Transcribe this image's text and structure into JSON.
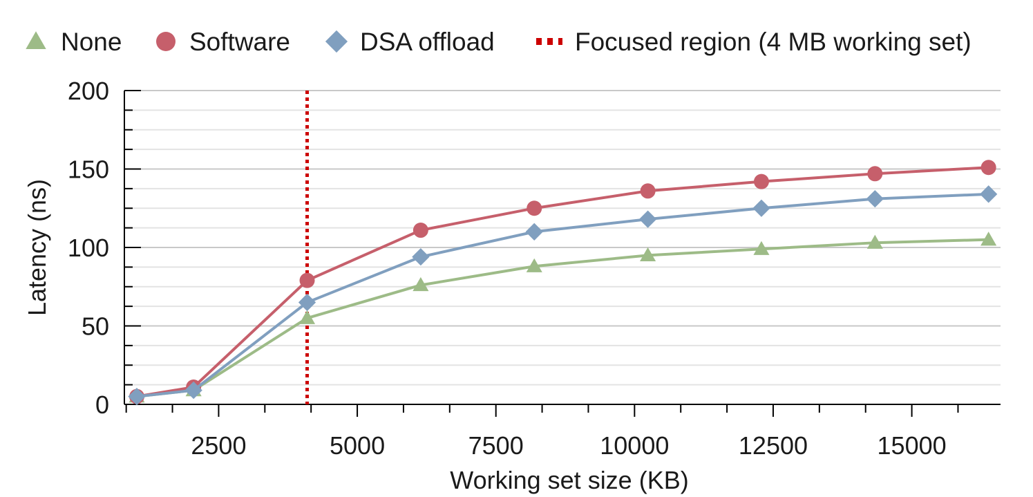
{
  "chart_data": {
    "type": "line",
    "title": "",
    "xlabel": "Working set size (KB)",
    "ylabel": "Latency (ns)",
    "xlim": [
      800,
      16600
    ],
    "ylim": [
      0,
      200
    ],
    "x_major_ticks": [
      2500,
      5000,
      7500,
      10000,
      12500,
      15000
    ],
    "y_major_ticks": [
      0,
      50,
      100,
      150,
      200
    ],
    "grid": true,
    "legend_position": "top",
    "x": [
      1024,
      2048,
      4096,
      6144,
      8192,
      10240,
      12288,
      14336,
      16384
    ],
    "series": [
      {
        "name": "None",
        "marker": "triangle",
        "color": "#9dbb87",
        "values": [
          5,
          9,
          55,
          76,
          88,
          95,
          99,
          103,
          105
        ]
      },
      {
        "name": "Software",
        "marker": "circle",
        "color": "#c65f6b",
        "values": [
          5,
          11,
          79,
          111,
          125,
          136,
          142,
          147,
          151
        ]
      },
      {
        "name": "DSA offload",
        "marker": "diamond",
        "color": "#809fbf",
        "values": [
          5,
          9,
          65,
          94,
          110,
          118,
          125,
          131,
          134
        ]
      }
    ],
    "annotations": [
      {
        "type": "vline",
        "x": 4096,
        "style": "dotted",
        "color": "#cc0000",
        "label": "Focused region (4 MB working set)"
      }
    ]
  }
}
